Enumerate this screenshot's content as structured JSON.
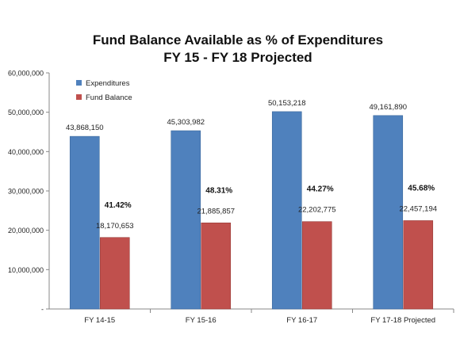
{
  "chart_data": {
    "type": "bar",
    "title_line1": "Fund Balance Available as % of Expenditures",
    "title_line2": "FY 15 - FY 18 Projected",
    "categories": [
      "FY 14-15",
      "FY 15-16",
      "FY 16-17",
      "FY 17-18 Projected"
    ],
    "series": [
      {
        "name": "Expenditures",
        "color": "#4F81BD",
        "values": [
          43868150,
          45303982,
          50153218,
          49161890
        ],
        "value_labels": [
          "43,868,150",
          "45,303,982",
          "50,153,218",
          "49,161,890"
        ]
      },
      {
        "name": "Fund Balance",
        "color": "#C0504D",
        "values": [
          18170653,
          21885857,
          22202775,
          22457194
        ],
        "value_labels": [
          "18,170,653",
          "21,885,857",
          "22,202,775",
          "22,457,194"
        ]
      }
    ],
    "percent_labels": [
      "41.42%",
      "48.31%",
      "44.27%",
      "45.68%"
    ],
    "ylim": [
      0,
      60000000
    ],
    "y_ticks": [
      0,
      10000000,
      20000000,
      30000000,
      40000000,
      50000000,
      60000000
    ],
    "y_tick_labels": [
      "-",
      "10,000,000",
      "20,000,000",
      "30,000,000",
      "40,000,000",
      "50,000,000",
      "60,000,000"
    ],
    "legend_position": "top-left",
    "grid": false
  }
}
